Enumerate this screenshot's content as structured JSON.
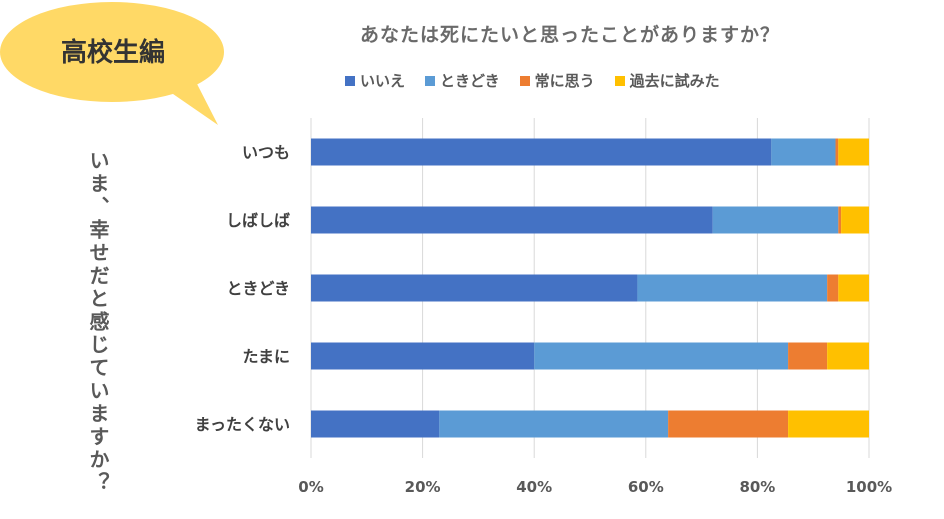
{
  "badge": {
    "label": "高校生編",
    "color": "#FFD966"
  },
  "chart_data": {
    "type": "bar",
    "orientation": "horizontal",
    "stacked": "percent",
    "title": "あなたは死にたいと思ったことがありますか？",
    "ylabel": "いま、幸せだと感じていますか？",
    "xlabel": "",
    "categories": [
      "いつも",
      "しばしば",
      "ときどき",
      "たまに",
      "まったくない"
    ],
    "series": [
      {
        "name": "いいえ",
        "color": "#4472C4",
        "values": [
          82.5,
          72,
          58.5,
          40,
          23
        ]
      },
      {
        "name": "ときどき",
        "color": "#5B9BD5",
        "values": [
          11.5,
          22.5,
          34,
          45.5,
          41
        ]
      },
      {
        "name": "常に思う",
        "color": "#ED7D31",
        "values": [
          0.5,
          0.5,
          2,
          7,
          21.5
        ]
      },
      {
        "name": "過去に試みた",
        "color": "#FFC000",
        "values": [
          5.5,
          5,
          5.5,
          7.5,
          14.5
        ]
      }
    ],
    "xlim": [
      0,
      100
    ],
    "x_ticks": [
      "0%",
      "20%",
      "40%",
      "60%",
      "80%",
      "100%"
    ],
    "legend_position": "top",
    "grid": true
  }
}
